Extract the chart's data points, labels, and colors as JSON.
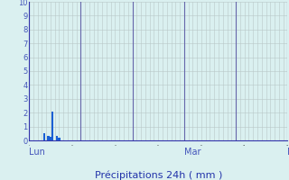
{
  "title": "Précipitations 24h ( mm )",
  "ylim": [
    0,
    10
  ],
  "yticks": [
    0,
    1,
    2,
    3,
    4,
    5,
    6,
    7,
    8,
    9,
    10
  ],
  "bg_color": "#daf0f0",
  "bar_color": "#1a5fd4",
  "total_hours": 120,
  "bar_data": [
    {
      "hour": 7,
      "val": 0.5
    },
    {
      "hour": 9,
      "val": 0.3
    },
    {
      "hour": 10,
      "val": 0.25
    },
    {
      "hour": 11,
      "val": 2.1
    },
    {
      "hour": 13,
      "val": 0.35
    },
    {
      "hour": 14,
      "val": 0.2
    }
  ],
  "day_labels": [
    {
      "label": "Lun",
      "hour": 0
    },
    {
      "label": "Mar",
      "hour": 72
    },
    {
      "label": "M",
      "hour": 120
    }
  ],
  "minor_grid_color": "#b8c8c8",
  "major_grid_color": "#6666aa",
  "axis_color": "#3333aa",
  "title_color": "#2233aa",
  "tick_label_color": "#4455bb",
  "bar_width": 1.0
}
